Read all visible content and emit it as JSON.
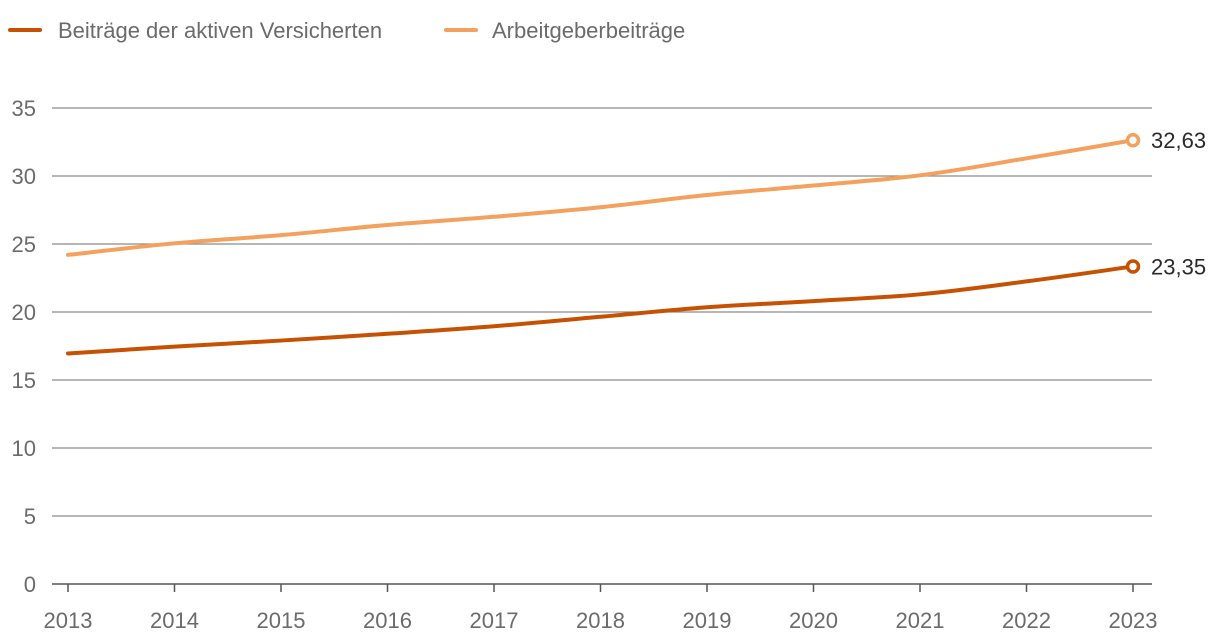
{
  "chart_data": {
    "type": "line",
    "title": "",
    "xlabel": "",
    "ylabel": "",
    "x": [
      "2013",
      "2014",
      "2015",
      "2016",
      "2017",
      "2018",
      "2019",
      "2020",
      "2021",
      "2022",
      "2023"
    ],
    "ylim": [
      0,
      35
    ],
    "yticks": [
      "0",
      "5",
      "10",
      "15",
      "20",
      "25",
      "30",
      "35"
    ],
    "grid": true,
    "legend_position": "top-left",
    "series": [
      {
        "name": "Beiträge der aktiven Versicherten",
        "color": "#c65102",
        "values": [
          16.95,
          17.45,
          17.9,
          18.4,
          18.95,
          19.65,
          20.35,
          20.8,
          21.3,
          22.25,
          23.35
        ],
        "end_label": "23,35"
      },
      {
        "name": "Arbeitgeberbeiträge",
        "color": "#f4a15d",
        "values": [
          24.2,
          25.05,
          25.65,
          26.4,
          27.0,
          27.7,
          28.6,
          29.3,
          30.05,
          31.3,
          32.63
        ],
        "end_label": "32,63"
      }
    ]
  }
}
